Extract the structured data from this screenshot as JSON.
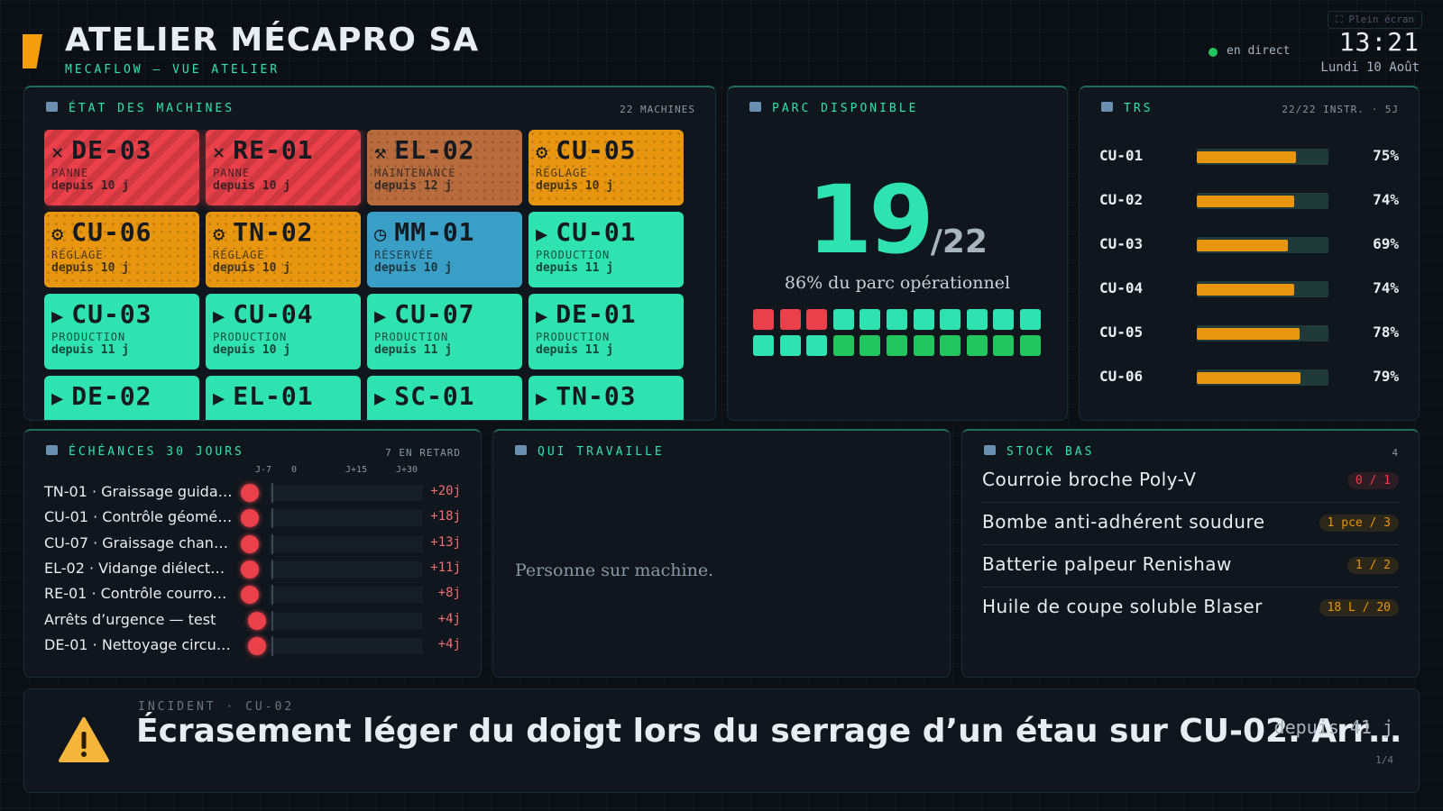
{
  "header": {
    "title": "ATELIER MÉCAPRO SA",
    "subtitle": "MECAFLOW — VUE ATELIER",
    "status": "en direct",
    "time": "13:21",
    "date": "Lundi 10 Août",
    "fullscreen": "⛶ Plein écran"
  },
  "machines": {
    "title": "ÉTAT DES MACHINES",
    "count": "22 MACHINES",
    "tiles": [
      {
        "icon": "✕",
        "name": "DE-03",
        "status": "PANNE",
        "since": "depuis 10 j",
        "color": "#ea4049",
        "pattern": "stripes"
      },
      {
        "icon": "✕",
        "name": "RE-01",
        "status": "PANNE",
        "since": "depuis 10 j",
        "color": "#ea4049",
        "pattern": "stripes"
      },
      {
        "icon": "⚒",
        "name": "EL-02",
        "status": "MAINTENANCE",
        "since": "depuis 12 j",
        "color": "#b86b3c",
        "pattern": "dots"
      },
      {
        "icon": "⚙",
        "name": "CU-05",
        "status": "RÉGLAGE",
        "since": "depuis 10 j",
        "color": "#e8960f",
        "pattern": "dots"
      },
      {
        "icon": "⚙",
        "name": "CU-06",
        "status": "RÉGLAGE",
        "since": "depuis 10 j",
        "color": "#e8960f",
        "pattern": "dots"
      },
      {
        "icon": "⚙",
        "name": "TN-02",
        "status": "RÉGLAGE",
        "since": "depuis 10 j",
        "color": "#e8960f",
        "pattern": "dots"
      },
      {
        "icon": "◷",
        "name": "MM-01",
        "status": "RÉSERVÉE",
        "since": "depuis 10 j",
        "color": "#3a9fc6",
        "pattern": "none"
      },
      {
        "icon": "▶",
        "name": "CU-01",
        "status": "PRODUCTION",
        "since": "depuis 11 j",
        "color": "#2ee3b0",
        "pattern": "none"
      },
      {
        "icon": "▶",
        "name": "CU-03",
        "status": "PRODUCTION",
        "since": "depuis 11 j",
        "color": "#2ee3b0",
        "pattern": "none"
      },
      {
        "icon": "▶",
        "name": "CU-04",
        "status": "PRODUCTION",
        "since": "depuis 10 j",
        "color": "#2ee3b0",
        "pattern": "none"
      },
      {
        "icon": "▶",
        "name": "CU-07",
        "status": "PRODUCTION",
        "since": "depuis 11 j",
        "color": "#2ee3b0",
        "pattern": "none"
      },
      {
        "icon": "▶",
        "name": "DE-01",
        "status": "PRODUCTION",
        "since": "depuis 11 j",
        "color": "#2ee3b0",
        "pattern": "none"
      },
      {
        "icon": "▶",
        "name": "DE-02",
        "color": "#2ee3b0",
        "pattern": "none"
      },
      {
        "icon": "▶",
        "name": "EL-01",
        "color": "#2ee3b0",
        "pattern": "none"
      },
      {
        "icon": "▶",
        "name": "SC-01",
        "color": "#2ee3b0",
        "pattern": "none"
      },
      {
        "icon": "▶",
        "name": "TN-03",
        "color": "#2ee3b0",
        "pattern": "none"
      }
    ]
  },
  "fleet": {
    "title": "PARC DISPONIBLE",
    "available": 19,
    "total": {
      "value": 22,
      "label": "/22"
    },
    "caption": "86% du parc opérationnel",
    "cells": [
      "#ea4049",
      "#ea4049",
      "#ea4049",
      "#2ee3b0",
      "#2ee3b0",
      "#2ee3b0",
      "#2ee3b0",
      "#2ee3b0",
      "#2ee3b0",
      "#2ee3b0",
      "#2ee3b0",
      "#2ee3b0",
      "#2ee3b0",
      "#2ee3b0",
      "#22c55e",
      "#22c55e",
      "#22c55e",
      "#22c55e",
      "#22c55e",
      "#22c55e",
      "#22c55e",
      "#22c55e"
    ]
  },
  "trs": {
    "title": "TRS",
    "note": "22/22 INSTR. · 5J",
    "color": "#e8960f",
    "rows": [
      {
        "name": "CU-01",
        "value": 75,
        "label": "75%"
      },
      {
        "name": "CU-02",
        "value": 74,
        "label": "74%"
      },
      {
        "name": "CU-03",
        "value": 69,
        "label": "69%"
      },
      {
        "name": "CU-04",
        "value": 74,
        "label": "74%"
      },
      {
        "name": "CU-05",
        "value": 78,
        "label": "78%"
      },
      {
        "name": "CU-06",
        "value": 79,
        "label": "79%"
      }
    ]
  },
  "deadlines": {
    "title": "ÉCHÉANCES 30 JOURS",
    "note": "7 EN RETARD",
    "axis": [
      "J-7",
      "0",
      "J+15",
      "J+30"
    ],
    "rows": [
      {
        "task": "TN-01 · Graissage guida…",
        "delay": "+20j"
      },
      {
        "task": "CU-01 · Contrôle géomé…",
        "delay": "+18j"
      },
      {
        "task": "CU-07 · Graissage chan…",
        "delay": "+13j"
      },
      {
        "task": "EL-02 · Vidange diélect…",
        "delay": "+11j"
      },
      {
        "task": "RE-01 · Contrôle courro…",
        "delay": "+8j"
      },
      {
        "task": "Arrêts d’urgence — test",
        "delay": "+4j"
      },
      {
        "task": "DE-01 · Nettoyage circu…",
        "delay": "+4j"
      }
    ]
  },
  "workers": {
    "title": "QUI TRAVAILLE",
    "empty": "Personne sur machine."
  },
  "stock": {
    "title": "STOCK BAS",
    "count": "4",
    "items": [
      {
        "name": "Courroie broche Poly-V",
        "qty": "0 / 1",
        "color": "#ea4049"
      },
      {
        "name": "Bombe anti-adhérent soudure",
        "qty": "1 pce / 3",
        "color": "#e8960f"
      },
      {
        "name": "Batterie palpeur Renishaw",
        "qty": "1 / 2",
        "color": "#e8960f"
      },
      {
        "name": "Huile de coupe soluble Blaser",
        "qty": "18 L / 20",
        "color": "#e8960f"
      }
    ]
  },
  "incident": {
    "kicker": "INCIDENT · CU-02",
    "text": "Écrasement léger du doigt lors du serrage d’un étau sur CU-02. Arr…",
    "since": "depuis 41 j",
    "page": "1/4"
  }
}
